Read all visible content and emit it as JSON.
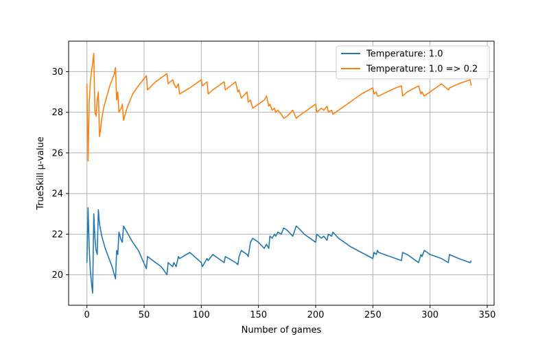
{
  "chart_data": {
    "type": "line",
    "xlabel": "Number of games",
    "ylabel": "TrueSkill μ-value",
    "xlim": [
      -16,
      356
    ],
    "ylim": [
      18.5,
      31.5
    ],
    "xticks": [
      0,
      50,
      100,
      150,
      200,
      250,
      300,
      350
    ],
    "yticks": [
      20,
      22,
      24,
      26,
      28,
      30
    ],
    "grid": true,
    "legend_position": "top-right",
    "series": [
      {
        "name": "Temperature: 1.0",
        "color": "#1f77b4",
        "x": [
          0,
          1,
          2,
          3,
          4,
          5,
          6,
          7,
          8,
          9,
          10,
          11,
          12,
          13,
          14,
          15,
          16,
          18,
          20,
          22,
          25,
          26,
          27,
          28,
          30,
          31,
          32,
          35,
          40,
          45,
          52,
          53,
          60,
          65,
          70,
          71,
          75,
          76,
          78,
          80,
          81,
          90,
          100,
          101,
          105,
          106,
          110,
          120,
          121,
          130,
          132,
          133,
          135,
          140,
          141,
          143,
          145,
          150,
          155,
          157,
          159,
          160,
          162,
          164,
          165,
          167,
          170,
          172,
          175,
          180,
          183,
          185,
          190,
          200,
          201,
          205,
          207,
          210,
          211,
          214,
          215,
          220,
          230,
          240,
          250,
          251,
          253,
          254,
          255,
          270,
          275,
          276,
          280,
          290,
          292,
          293,
          295,
          300,
          310,
          316,
          317,
          325,
          335,
          336
        ],
        "values": [
          20.6,
          23.3,
          21.3,
          20.2,
          19.6,
          19.1,
          23.0,
          21.8,
          21.2,
          21.0,
          23.2,
          22.5,
          22.2,
          21.9,
          21.7,
          21.5,
          21.3,
          21.0,
          20.7,
          20.4,
          19.8,
          21.2,
          21.0,
          22.1,
          21.7,
          21.6,
          22.4,
          22.1,
          21.6,
          21.2,
          20.3,
          20.9,
          20.6,
          20.4,
          20.0,
          20.6,
          20.4,
          20.6,
          20.4,
          20.9,
          20.8,
          21.1,
          20.6,
          20.4,
          20.8,
          20.7,
          21.0,
          20.6,
          20.9,
          20.6,
          20.5,
          20.9,
          21.2,
          21.0,
          20.9,
          21.6,
          21.8,
          21.6,
          21.3,
          21.5,
          21.3,
          21.9,
          21.8,
          22.0,
          21.9,
          22.1,
          22.0,
          22.3,
          22.2,
          21.9,
          22.4,
          22.3,
          22.0,
          21.6,
          22.0,
          21.8,
          21.9,
          21.7,
          22.0,
          21.9,
          22.1,
          21.8,
          21.4,
          21.1,
          20.8,
          21.1,
          21.0,
          21.2,
          21.1,
          20.8,
          20.7,
          21.1,
          21.0,
          20.6,
          21.0,
          20.9,
          21.2,
          21.0,
          20.8,
          20.6,
          21.0,
          20.8,
          20.6,
          20.7
        ]
      },
      {
        "name": "Temperature: 1.0 => 0.2",
        "color": "#ff7f0e",
        "x": [
          0,
          1,
          2,
          3,
          4,
          5,
          6,
          7,
          8,
          9,
          10,
          11,
          12,
          13,
          14,
          15,
          18,
          20,
          24,
          25,
          26,
          27,
          28,
          30,
          31,
          32,
          35,
          40,
          45,
          52,
          53,
          60,
          65,
          70,
          71,
          75,
          76,
          78,
          80,
          81,
          90,
          100,
          101,
          105,
          106,
          110,
          120,
          121,
          130,
          132,
          133,
          135,
          140,
          141,
          143,
          145,
          150,
          155,
          157,
          159,
          160,
          162,
          164,
          165,
          167,
          170,
          172,
          175,
          180,
          183,
          185,
          190,
          200,
          201,
          205,
          207,
          210,
          211,
          214,
          215,
          220,
          230,
          240,
          250,
          251,
          253,
          254,
          255,
          270,
          275,
          276,
          280,
          290,
          292,
          293,
          295,
          300,
          310,
          316,
          317,
          325,
          335,
          336
        ],
        "values": [
          29.4,
          25.6,
          28.5,
          29.5,
          30.0,
          30.4,
          30.9,
          28.0,
          27.8,
          28.6,
          29.0,
          26.8,
          27.2,
          27.7,
          28.0,
          28.3,
          28.9,
          29.3,
          29.9,
          30.2,
          28.6,
          29.0,
          28.0,
          28.2,
          28.4,
          27.6,
          28.2,
          28.9,
          29.3,
          29.8,
          29.1,
          29.5,
          29.7,
          29.9,
          29.4,
          29.6,
          29.4,
          29.2,
          29.4,
          28.9,
          29.2,
          29.6,
          29.3,
          29.5,
          28.9,
          29.1,
          29.5,
          29.1,
          29.5,
          29.0,
          29.1,
          28.7,
          29.0,
          28.5,
          28.6,
          28.2,
          28.4,
          28.6,
          28.8,
          28.3,
          28.4,
          28.1,
          28.2,
          28.0,
          28.1,
          27.9,
          27.7,
          27.8,
          28.1,
          27.7,
          27.8,
          28.0,
          28.4,
          28.0,
          28.2,
          28.1,
          28.3,
          28.0,
          28.1,
          27.9,
          28.1,
          28.5,
          28.9,
          29.2,
          28.9,
          29.0,
          28.8,
          28.8,
          29.2,
          29.3,
          28.8,
          29.0,
          29.3,
          28.9,
          29.0,
          28.8,
          29.0,
          29.4,
          29.1,
          29.2,
          29.4,
          29.6,
          29.3
        ]
      }
    ]
  }
}
